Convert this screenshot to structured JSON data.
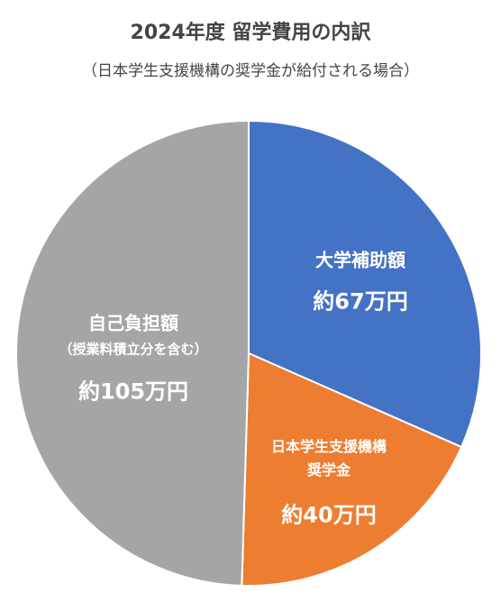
{
  "chart_data": {
    "type": "pie",
    "title": "2024年度 留学費用の内訳",
    "subtitle": "（日本学生支援機構の奨学金が給付される場合）",
    "categories": [
      "大学補助額",
      "日本学生支援機構奨学金",
      "自己負担額"
    ],
    "values": [
      67,
      40,
      105
    ],
    "value_labels": [
      "約67万円",
      "約40万円",
      "約105万円"
    ],
    "colors": [
      "#4472c4",
      "#ed7d31",
      "#a5a5a5"
    ],
    "annotation": "（授業料積立分を含む）"
  }
}
